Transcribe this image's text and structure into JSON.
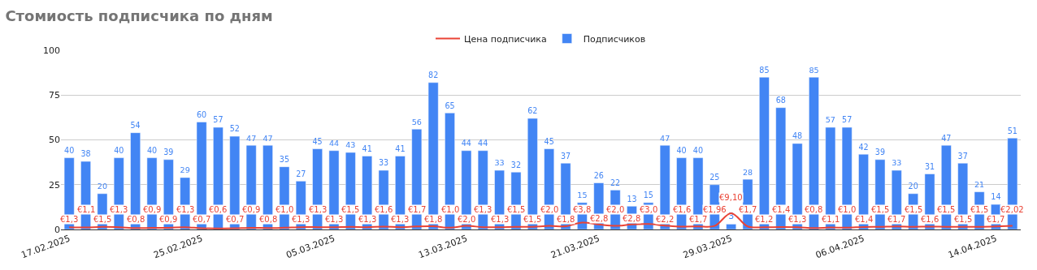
{
  "chart_data": {
    "type": "bar",
    "title": "Стомиость подписчика по дням",
    "x": [
      "2025-02-17",
      "2025-02-18",
      "2025-02-19",
      "2025-02-20",
      "2025-02-21",
      "2025-02-22",
      "2025-02-23",
      "2025-02-24",
      "2025-02-25",
      "2025-02-26",
      "2025-02-27",
      "2025-02-28",
      "2025-03-01",
      "2025-03-02",
      "2025-03-03",
      "2025-03-04",
      "2025-03-05",
      "2025-03-06",
      "2025-03-07",
      "2025-03-08",
      "2025-03-09",
      "2025-03-10",
      "2025-03-11",
      "2025-03-12",
      "2025-03-13",
      "2025-03-14",
      "2025-03-15",
      "2025-03-16",
      "2025-03-17",
      "2025-03-18",
      "2025-03-19",
      "2025-03-20",
      "2025-03-21",
      "2025-03-22",
      "2025-03-23",
      "2025-03-24",
      "2025-03-25",
      "2025-03-26",
      "2025-03-27",
      "2025-03-28",
      "2025-03-29",
      "2025-03-30",
      "2025-03-31",
      "2025-04-01",
      "2025-04-02",
      "2025-04-03",
      "2025-04-04",
      "2025-04-05",
      "2025-04-06",
      "2025-04-07",
      "2025-04-08",
      "2025-04-09",
      "2025-04-10",
      "2025-04-11",
      "2025-04-12",
      "2025-04-13",
      "2025-04-14",
      "2025-04-15"
    ],
    "series": [
      {
        "name": "Цена подписчика",
        "type": "line",
        "color": "#ea4335",
        "marker": "none",
        "line_style": "solid",
        "values": [
          1.3,
          1.1,
          1.5,
          1.3,
          0.8,
          0.9,
          0.9,
          1.3,
          0.7,
          0.6,
          0.7,
          0.9,
          0.8,
          1.0,
          1.3,
          1.3,
          1.3,
          1.5,
          1.3,
          1.6,
          1.3,
          1.7,
          1.8,
          1.0,
          2.0,
          1.3,
          1.3,
          1.5,
          1.5,
          2.0,
          1.8,
          3.8,
          2.8,
          2.0,
          2.8,
          3.0,
          2.2,
          1.6,
          1.7,
          1.96,
          9.1,
          1.7,
          1.2,
          1.4,
          1.3,
          0.8,
          1.1,
          1.0,
          1.4,
          1.5,
          1.7,
          1.5,
          1.6,
          1.5,
          1.5,
          1.5,
          1.7,
          2.02
        ],
        "value_labels": [
          "€1,3",
          "€1,1",
          "€1,5",
          "€1,3",
          "€0,8",
          "€0,9",
          "€0,9",
          "€1,3",
          "€0,7",
          "€0,6",
          "€0,7",
          "€0,9",
          "€0,8",
          "€1,0",
          "€1,3",
          "€1,3",
          "€1,3",
          "€1,5",
          "€1,3",
          "€1,6",
          "€1,3",
          "€1,7",
          "€1,8",
          "€1,0",
          "€2,0",
          "€1,3",
          "€1,3",
          "€1,5",
          "€1,5",
          "€2,0",
          "€1,8",
          "€3,8",
          "€2,8",
          "€2,0",
          "€2,8",
          "€3,0",
          "€2,2",
          "€1,6",
          "€1,7",
          "€1,96",
          "€9,10",
          "€1,7",
          "€1,2",
          "€1,4",
          "€1,3",
          "€0,8",
          "€1,1",
          "€1,0",
          "€1,4",
          "€1,5",
          "€1,7",
          "€1,5",
          "€1,6",
          "€1,5",
          "€1,5",
          "€1,5",
          "€1,7",
          "€2,02"
        ]
      },
      {
        "name": "Подписчиков",
        "color": "#4285f4",
        "values": [
          40,
          38,
          20,
          40,
          54,
          40,
          39,
          29,
          60,
          57,
          52,
          47,
          47,
          35,
          27,
          45,
          44,
          43,
          41,
          33,
          41,
          56,
          82,
          65,
          44,
          44,
          33,
          32,
          62,
          45,
          37,
          15,
          26,
          22,
          13,
          15,
          47,
          40,
          40,
          25,
          3,
          28,
          85,
          68,
          48,
          85,
          57,
          57,
          42,
          39,
          33,
          20,
          31,
          47,
          37,
          21,
          14,
          51
        ],
        "value_labels": [
          "40",
          "38",
          "20",
          "40",
          "54",
          "40",
          "39",
          "29",
          "60",
          "57",
          "52",
          "47",
          "47",
          "35",
          "27",
          "45",
          "44",
          "43",
          "41",
          "33",
          "41",
          "56",
          "82",
          "65",
          "44",
          "44",
          "33",
          "32",
          "62",
          "45",
          "37",
          "15",
          "26",
          "22",
          "13",
          "15",
          "47",
          "40",
          "40",
          "25",
          "3",
          "28",
          "85",
          "68",
          "48",
          "85",
          "57",
          "57",
          "42",
          "39",
          "33",
          "20",
          "31",
          "47",
          "37",
          "21",
          "14",
          "51"
        ]
      }
    ],
    "xlim": [
      "2025-02-16T12:00",
      "2025-04-15T12:00"
    ],
    "xticks": [
      {
        "value": "2025-02-17",
        "label": "17.02.2025"
      },
      {
        "value": "2025-02-25",
        "label": "25.02.2025"
      },
      {
        "value": "2025-03-05",
        "label": "05.03.2025"
      },
      {
        "value": "2025-03-13",
        "label": "13.03.2025"
      },
      {
        "value": "2025-03-21",
        "label": "21.03.2025"
      },
      {
        "value": "2025-03-29",
        "label": "29.03.2025"
      },
      {
        "value": "2025-04-06",
        "label": "06.04.2025"
      },
      {
        "value": "2025-04-14",
        "label": "14.04.2025"
      }
    ],
    "ylim": [
      0,
      100
    ],
    "yticks": [
      0,
      25,
      50,
      75,
      100
    ],
    "grid": "y",
    "legend": "top"
  }
}
